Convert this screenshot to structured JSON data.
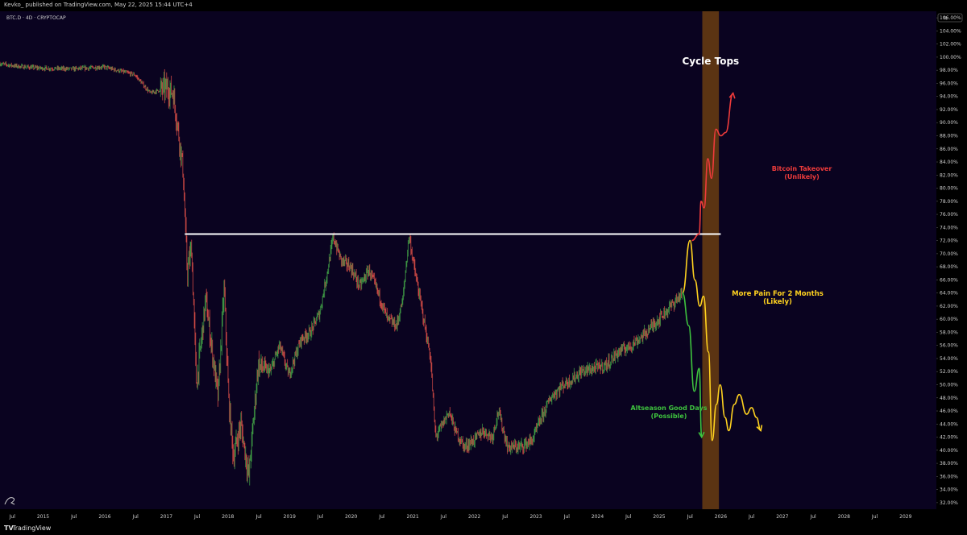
{
  "header": {
    "published_line": "Kevko_ published on TradingView.com, May 22, 2025 15:44 UTC+4"
  },
  "footer": {
    "brand_logo": "TV",
    "brand_name": "TradingView"
  },
  "chart_data": {
    "type": "candlestick",
    "symbol_line": "BTC.D · 4D · CRYPTOCAP",
    "yaxis_unit": "%",
    "ylim": [
      31,
      107
    ],
    "y_tick_values": [
      32,
      34,
      36,
      38,
      40,
      42,
      44,
      46,
      48,
      50,
      52,
      54,
      56,
      58,
      60,
      62,
      64,
      66,
      68,
      70,
      72,
      74,
      76,
      78,
      80,
      82,
      84,
      86,
      88,
      90,
      92,
      94,
      96,
      98,
      100,
      102,
      104,
      106
    ],
    "y_tick_labels": [
      "32.00%",
      "34.00%",
      "36.00%",
      "38.00%",
      "40.00%",
      "42.00%",
      "44.00%",
      "46.00%",
      "48.00%",
      "50.00%",
      "52.00%",
      "54.00%",
      "56.00%",
      "58.00%",
      "60.00%",
      "62.00%",
      "64.00%",
      "66.00%",
      "68.00%",
      "70.00%",
      "72.00%",
      "74.00%",
      "76.00%",
      "78.00%",
      "80.00%",
      "82.00%",
      "84.00%",
      "86.00%",
      "88.00%",
      "90.00%",
      "92.00%",
      "94.00%",
      "96.00%",
      "98.00%",
      "100.00%",
      "102.00%",
      "104.00%",
      "106.00%"
    ],
    "xlim": [
      2014.3,
      2029.5
    ],
    "x_ticks": [
      {
        "t": 2014.5,
        "label": "Jul"
      },
      {
        "t": 2015.0,
        "label": "2015"
      },
      {
        "t": 2015.5,
        "label": "Jul"
      },
      {
        "t": 2016.0,
        "label": "2016"
      },
      {
        "t": 2016.5,
        "label": "Jul"
      },
      {
        "t": 2017.0,
        "label": "2017"
      },
      {
        "t": 2017.5,
        "label": "Jul"
      },
      {
        "t": 2018.0,
        "label": "2018"
      },
      {
        "t": 2018.5,
        "label": "Jul"
      },
      {
        "t": 2019.0,
        "label": "2019"
      },
      {
        "t": 2019.5,
        "label": "Jul"
      },
      {
        "t": 2020.0,
        "label": "2020"
      },
      {
        "t": 2020.5,
        "label": "Jul"
      },
      {
        "t": 2021.0,
        "label": "2021"
      },
      {
        "t": 2021.5,
        "label": "Jul"
      },
      {
        "t": 2022.0,
        "label": "2022"
      },
      {
        "t": 2022.5,
        "label": "Jul"
      },
      {
        "t": 2023.0,
        "label": "2023"
      },
      {
        "t": 2023.5,
        "label": "Jul"
      },
      {
        "t": 2024.0,
        "label": "2024"
      },
      {
        "t": 2024.5,
        "label": "Jul"
      },
      {
        "t": 2025.0,
        "label": "2025"
      },
      {
        "t": 2025.5,
        "label": "Jul"
      },
      {
        "t": 2026.0,
        "label": "2026"
      },
      {
        "t": 2026.5,
        "label": "Jul"
      },
      {
        "t": 2027.0,
        "label": "2027"
      },
      {
        "t": 2027.5,
        "label": "Jul"
      },
      {
        "t": 2028.0,
        "label": "2028"
      },
      {
        "t": 2028.5,
        "label": "Jul"
      },
      {
        "t": 2029.0,
        "label": "2029"
      }
    ],
    "price_path": [
      [
        2014.3,
        99.0
      ],
      [
        2014.6,
        98.6
      ],
      [
        2015.0,
        98.3
      ],
      [
        2015.5,
        98.2
      ],
      [
        2016.0,
        98.5
      ],
      [
        2016.5,
        97.3
      ],
      [
        2016.75,
        94.5
      ],
      [
        2017.0,
        95.3
      ],
      [
        2017.12,
        94.6
      ],
      [
        2017.2,
        89.0
      ],
      [
        2017.28,
        83.0
      ],
      [
        2017.35,
        67.0
      ],
      [
        2017.42,
        71.0
      ],
      [
        2017.5,
        50.0
      ],
      [
        2017.65,
        63.0
      ],
      [
        2017.85,
        48.0
      ],
      [
        2017.95,
        65.0
      ],
      [
        2018.02,
        48.0
      ],
      [
        2018.1,
        39.0
      ],
      [
        2018.22,
        44.0
      ],
      [
        2018.35,
        36.0
      ],
      [
        2018.5,
        53.0
      ],
      [
        2018.7,
        52.0
      ],
      [
        2018.85,
        56.0
      ],
      [
        2019.0,
        51.5
      ],
      [
        2019.2,
        57.0
      ],
      [
        2019.35,
        58.0
      ],
      [
        2019.5,
        61.0
      ],
      [
        2019.62,
        67.0
      ],
      [
        2019.72,
        72.5
      ],
      [
        2019.85,
        69.0
      ],
      [
        2020.0,
        68.0
      ],
      [
        2020.15,
        65.0
      ],
      [
        2020.3,
        67.5
      ],
      [
        2020.45,
        64.0
      ],
      [
        2020.6,
        60.0
      ],
      [
        2020.75,
        59.0
      ],
      [
        2020.85,
        63.0
      ],
      [
        2020.95,
        72.8
      ],
      [
        2021.05,
        67.0
      ],
      [
        2021.15,
        62.0
      ],
      [
        2021.3,
        54.0
      ],
      [
        2021.38,
        42.0
      ],
      [
        2021.5,
        44.0
      ],
      [
        2021.6,
        46.0
      ],
      [
        2021.7,
        43.0
      ],
      [
        2021.85,
        40.5
      ],
      [
        2022.0,
        41.5
      ],
      [
        2022.15,
        43.0
      ],
      [
        2022.3,
        42.0
      ],
      [
        2022.4,
        46.0
      ],
      [
        2022.55,
        40.5
      ],
      [
        2022.75,
        40.5
      ],
      [
        2022.95,
        41.5
      ],
      [
        2023.1,
        45.0
      ],
      [
        2023.25,
        48.0
      ],
      [
        2023.45,
        50.0
      ],
      [
        2023.55,
        50.5
      ],
      [
        2023.75,
        52.0
      ],
      [
        2023.95,
        52.5
      ],
      [
        2024.15,
        53.0
      ],
      [
        2024.35,
        55.0
      ],
      [
        2024.55,
        56.0
      ],
      [
        2024.75,
        57.5
      ],
      [
        2024.9,
        59.0
      ],
      [
        2025.1,
        61.0
      ],
      [
        2025.25,
        62.5
      ],
      [
        2025.38,
        64.0
      ]
    ],
    "horizontal_level": {
      "value": 73.0,
      "from": 2017.3,
      "to": 2026.0
    },
    "cycle_top_band": {
      "from": 2025.7,
      "to": 2025.97,
      "label": "Cycle Tops"
    },
    "scenarios": [
      {
        "label_line1": "Bitcoin Takeover",
        "label_line2": "(Unlikely)",
        "color": "#ee3b3b",
        "points": [
          [
            2025.53,
            72.0
          ],
          [
            2025.65,
            73.0
          ],
          [
            2025.68,
            78.0
          ],
          [
            2025.73,
            77.0
          ],
          [
            2025.79,
            84.5
          ],
          [
            2025.85,
            81.5
          ],
          [
            2025.92,
            89.0
          ],
          [
            2026.0,
            88.0
          ],
          [
            2026.08,
            88.5
          ],
          [
            2026.2,
            94.5
          ]
        ]
      },
      {
        "label_line1": "More Pain For 2 Months",
        "label_line2": "(Likely)",
        "color": "#ffd21f",
        "points": [
          [
            2025.38,
            64.0
          ],
          [
            2025.5,
            72.0
          ],
          [
            2025.58,
            66.0
          ],
          [
            2025.66,
            62.0
          ],
          [
            2025.72,
            63.5
          ],
          [
            2025.8,
            55.0
          ],
          [
            2025.86,
            41.5
          ],
          [
            2025.93,
            47.0
          ],
          [
            2025.99,
            50.0
          ],
          [
            2026.07,
            45.0
          ],
          [
            2026.13,
            43.0
          ],
          [
            2026.22,
            47.0
          ],
          [
            2026.3,
            48.5
          ],
          [
            2026.42,
            45.5
          ],
          [
            2026.5,
            46.5
          ],
          [
            2026.58,
            45.0
          ],
          [
            2026.65,
            43.0
          ]
        ]
      },
      {
        "label_line1": "Altseason Good Days",
        "label_line2": "(Possible)",
        "color": "#3ec33e",
        "points": [
          [
            2025.38,
            64.0
          ],
          [
            2025.48,
            59.0
          ],
          [
            2025.57,
            49.0
          ],
          [
            2025.65,
            52.5
          ],
          [
            2025.69,
            42.0
          ]
        ]
      }
    ]
  }
}
